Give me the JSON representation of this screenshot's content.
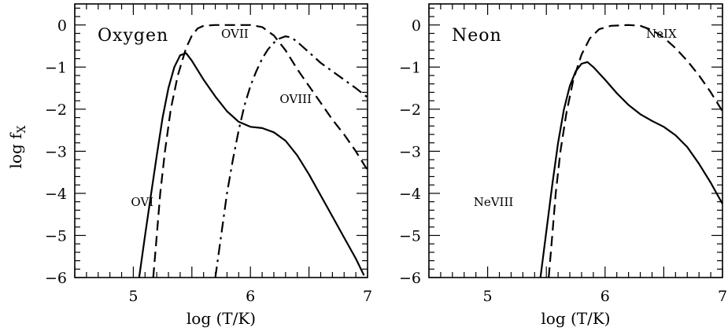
{
  "chart_data": [
    {
      "type": "line",
      "title": "Oxygen",
      "xlabel": "log (T/K)",
      "ylabel_main": "log f",
      "ylabel_sub": "X",
      "xlim": [
        4.5,
        7.0
      ],
      "ylim": [
        -6,
        0.5
      ],
      "xticks": [
        "5",
        "6",
        "7"
      ],
      "yticks": [
        "0",
        "−1",
        "−2",
        "−3",
        "−4",
        "−5",
        "−6"
      ],
      "series": [
        {
          "name": "OVI",
          "style": "solid",
          "points": [
            [
              5.05,
              -6.0
            ],
            [
              5.1,
              -5.0
            ],
            [
              5.15,
              -4.05
            ],
            [
              5.2,
              -3.1
            ],
            [
              5.25,
              -2.2
            ],
            [
              5.3,
              -1.5
            ],
            [
              5.35,
              -1.0
            ],
            [
              5.4,
              -0.72
            ],
            [
              5.45,
              -0.67
            ],
            [
              5.5,
              -0.85
            ],
            [
              5.6,
              -1.3
            ],
            [
              5.7,
              -1.7
            ],
            [
              5.8,
              -2.05
            ],
            [
              5.9,
              -2.3
            ],
            [
              6.0,
              -2.42
            ],
            [
              6.1,
              -2.45
            ],
            [
              6.2,
              -2.55
            ],
            [
              6.3,
              -2.75
            ],
            [
              6.4,
              -3.1
            ],
            [
              6.5,
              -3.55
            ],
            [
              6.6,
              -4.05
            ],
            [
              6.7,
              -4.55
            ],
            [
              6.8,
              -5.05
            ],
            [
              6.9,
              -5.55
            ],
            [
              6.97,
              -5.95
            ]
          ]
        },
        {
          "name": "OVII",
          "style": "dashed",
          "points": [
            [
              5.17,
              -6.0
            ],
            [
              5.2,
              -5.0
            ],
            [
              5.23,
              -4.0
            ],
            [
              5.27,
              -3.0
            ],
            [
              5.32,
              -2.0
            ],
            [
              5.38,
              -1.2
            ],
            [
              5.45,
              -0.55
            ],
            [
              5.5,
              -0.25
            ],
            [
              5.55,
              -0.08
            ],
            [
              5.6,
              -0.02
            ],
            [
              5.7,
              0.0
            ],
            [
              5.9,
              0.0
            ],
            [
              6.0,
              0.0
            ],
            [
              6.1,
              -0.05
            ],
            [
              6.2,
              -0.25
            ],
            [
              6.3,
              -0.6
            ],
            [
              6.4,
              -1.05
            ],
            [
              6.5,
              -1.45
            ],
            [
              6.6,
              -1.85
            ],
            [
              6.7,
              -2.25
            ],
            [
              6.8,
              -2.6
            ],
            [
              6.9,
              -3.0
            ],
            [
              7.0,
              -3.45
            ]
          ]
        },
        {
          "name": "OVIII",
          "style": "dashdot",
          "points": [
            [
              5.7,
              -6.0
            ],
            [
              5.75,
              -5.0
            ],
            [
              5.8,
              -4.0
            ],
            [
              5.85,
              -3.2
            ],
            [
              5.9,
              -2.5
            ],
            [
              5.95,
              -1.9
            ],
            [
              6.0,
              -1.45
            ],
            [
              6.05,
              -1.1
            ],
            [
              6.1,
              -0.8
            ],
            [
              6.15,
              -0.58
            ],
            [
              6.2,
              -0.42
            ],
            [
              6.25,
              -0.32
            ],
            [
              6.3,
              -0.27
            ],
            [
              6.35,
              -0.3
            ],
            [
              6.4,
              -0.4
            ],
            [
              6.5,
              -0.65
            ],
            [
              6.6,
              -0.9
            ],
            [
              6.7,
              -1.1
            ],
            [
              6.8,
              -1.3
            ],
            [
              6.9,
              -1.5
            ],
            [
              7.0,
              -1.72
            ]
          ]
        }
      ],
      "labels": [
        {
          "series": "OVI",
          "text": "OVI",
          "x": 4.98,
          "y": -4.3
        },
        {
          "series": "OVII",
          "text": "OVII",
          "x": 5.75,
          "y": -0.3
        },
        {
          "series": "OVIII",
          "text": "OVIII",
          "x": 6.25,
          "y": -1.85
        }
      ]
    },
    {
      "type": "line",
      "title": "Neon",
      "xlabel": "log (T/K)",
      "ylabel_main": "",
      "ylabel_sub": "",
      "xlim": [
        4.5,
        7.0
      ],
      "ylim": [
        -6,
        0.5
      ],
      "xticks": [
        "5",
        "6",
        "7"
      ],
      "yticks": [
        "0",
        "−1",
        "−2",
        "−3",
        "−4",
        "−5",
        "−6"
      ],
      "series": [
        {
          "name": "NeVIII",
          "style": "solid",
          "points": [
            [
              5.45,
              -6.0
            ],
            [
              5.5,
              -4.9
            ],
            [
              5.55,
              -3.8
            ],
            [
              5.6,
              -2.8
            ],
            [
              5.65,
              -2.0
            ],
            [
              5.7,
              -1.45
            ],
            [
              5.75,
              -1.1
            ],
            [
              5.8,
              -0.92
            ],
            [
              5.85,
              -0.88
            ],
            [
              5.9,
              -1.0
            ],
            [
              6.0,
              -1.3
            ],
            [
              6.1,
              -1.62
            ],
            [
              6.2,
              -1.9
            ],
            [
              6.3,
              -2.12
            ],
            [
              6.4,
              -2.28
            ],
            [
              6.5,
              -2.42
            ],
            [
              6.6,
              -2.62
            ],
            [
              6.7,
              -2.9
            ],
            [
              6.8,
              -3.3
            ],
            [
              6.9,
              -3.75
            ],
            [
              7.0,
              -4.25
            ]
          ]
        },
        {
          "name": "NeIX",
          "style": "dashed",
          "points": [
            [
              5.52,
              -6.0
            ],
            [
              5.55,
              -5.0
            ],
            [
              5.58,
              -4.0
            ],
            [
              5.62,
              -3.0
            ],
            [
              5.67,
              -2.1
            ],
            [
              5.73,
              -1.3
            ],
            [
              5.8,
              -0.7
            ],
            [
              5.87,
              -0.32
            ],
            [
              5.95,
              -0.1
            ],
            [
              6.05,
              -0.02
            ],
            [
              6.2,
              0.0
            ],
            [
              6.3,
              -0.02
            ],
            [
              6.4,
              -0.12
            ],
            [
              6.5,
              -0.3
            ],
            [
              6.6,
              -0.55
            ],
            [
              6.7,
              -0.85
            ],
            [
              6.8,
              -1.2
            ],
            [
              6.9,
              -1.6
            ],
            [
              7.0,
              -2.05
            ]
          ]
        }
      ],
      "labels": [
        {
          "series": "NeVIII",
          "text": "NeVIII",
          "x": 4.88,
          "y": -4.3
        },
        {
          "series": "NeIX",
          "text": "NeIX",
          "x": 6.35,
          "y": -0.3
        }
      ]
    }
  ]
}
